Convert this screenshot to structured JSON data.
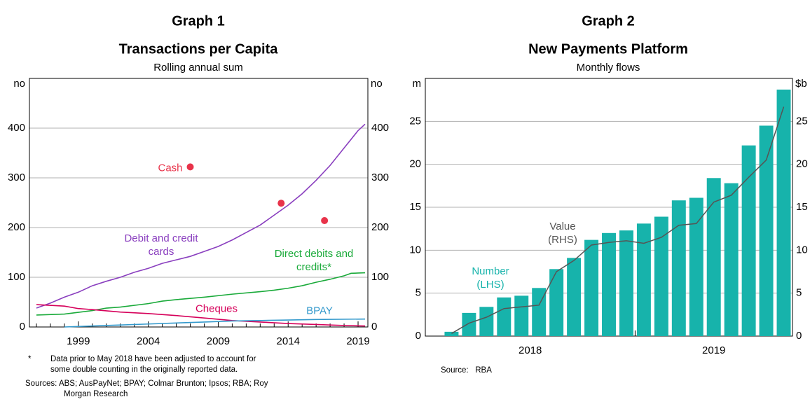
{
  "chart_data": [
    {
      "type": "line",
      "graph_label": "Graph 1",
      "title": "Transactions per Capita",
      "subtitle": "Rolling annual sum",
      "y_unit": "no",
      "y2_unit": "no",
      "xlim": [
        1995.5,
        2019.7
      ],
      "xticks": [
        1999,
        2004,
        2009,
        2014,
        2019
      ],
      "xminorticks": [
        1996,
        1997,
        1998,
        2000,
        2001,
        2002,
        2003,
        2005,
        2006,
        2007,
        2008,
        2010,
        2011,
        2012,
        2013,
        2015,
        2016,
        2017,
        2018
      ],
      "ylim": [
        0,
        500
      ],
      "yticks": [
        0,
        100,
        200,
        300,
        400
      ],
      "y2lim": [
        0,
        500
      ],
      "y2ticks": [
        0,
        100,
        200,
        300,
        400
      ],
      "grid": true,
      "series": [
        {
          "name": "Cash",
          "mark": "dot",
          "color": "#e8334a",
          "x": [
            2007,
            2013.5,
            2016.6
          ],
          "values": [
            322,
            249,
            214
          ]
        },
        {
          "name": "Debit and credit cards",
          "color": "#8a3fbf",
          "x": [
            1996,
            1997,
            1998,
            1999,
            2000,
            2001,
            2002,
            2003,
            2004,
            2005,
            2006,
            2007,
            2008,
            2009,
            2010,
            2011,
            2012,
            2013,
            2014,
            2015,
            2016,
            2017,
            2018,
            2019,
            2019.5
          ],
          "values": [
            38,
            48,
            60,
            70,
            83,
            92,
            100,
            110,
            118,
            128,
            135,
            142,
            152,
            162,
            175,
            190,
            205,
            225,
            245,
            268,
            295,
            325,
            360,
            395,
            408
          ]
        },
        {
          "name": "Direct debits and credits*",
          "color": "#1aaa3a",
          "x": [
            1996,
            1998,
            2000,
            2001,
            2002,
            2004,
            2005,
            2006,
            2008,
            2010,
            2012,
            2013,
            2014,
            2015,
            2016,
            2017,
            2018,
            2018.5,
            2019.5
          ],
          "values": [
            24,
            26,
            33,
            38,
            40,
            47,
            52,
            55,
            60,
            66,
            71,
            74,
            78,
            83,
            90,
            96,
            103,
            108,
            109
          ]
        },
        {
          "name": "Cheques",
          "color": "#d6005a",
          "x": [
            1996,
            1998,
            1999,
            2000,
            2002,
            2004,
            2006,
            2008,
            2010,
            2012,
            2014,
            2016,
            2018,
            2019.5
          ],
          "values": [
            45,
            42,
            37,
            35,
            30,
            27,
            23,
            18,
            13,
            10,
            7,
            5,
            3,
            2
          ]
        },
        {
          "name": "BPAY",
          "color": "#3399cc",
          "x": [
            1998,
            2000,
            2002,
            2004,
            2006,
            2008,
            2010,
            2012,
            2014,
            2016,
            2019.5
          ],
          "values": [
            0,
            2,
            4,
            6,
            8,
            10,
            12,
            13,
            14,
            15,
            16
          ]
        }
      ],
      "footnote_marker": "*",
      "footnote": "Data prior to May 2018 have been adjusted to account for some double counting in the originally reported data.",
      "sources": "Sources: ABS; AusPayNet; BPAY; Colmar Brunton; Ipsos; RBA; Roy Morgan Research"
    },
    {
      "type": "bar_line",
      "graph_label": "Graph 2",
      "title": "New Payments Platform",
      "subtitle": "Monthly flows",
      "y_unit": "m",
      "y2_unit": "$b",
      "categories": [
        null,
        null,
        null,
        null,
        null,
        null,
        null,
        null,
        null,
        null,
        null,
        null,
        null,
        null,
        null,
        null,
        null,
        null,
        null,
        null,
        null
      ],
      "x_groups": [
        {
          "label": "2018",
          "count": 12
        },
        {
          "label": "2019",
          "count": 9
        }
      ],
      "ylim": [
        0,
        30
      ],
      "yticks": [
        0,
        5,
        10,
        15,
        20,
        25
      ],
      "y2lim": [
        0,
        30
      ],
      "y2ticks": [
        0,
        5,
        10,
        15,
        20,
        25
      ],
      "grid": true,
      "series": [
        {
          "name": "Number (LHS)",
          "type": "bar",
          "color": "#17b3ab",
          "values": [
            null,
            0.5,
            2.7,
            3.4,
            4.5,
            4.7,
            5.6,
            7.8,
            9.1,
            11.2,
            12.0,
            12.3,
            13.1,
            13.9,
            15.8,
            16.1,
            18.4,
            17.8,
            22.2,
            24.5,
            28.7
          ]
        },
        {
          "name": "Value (RHS)",
          "type": "line",
          "axis": "y2",
          "color": "#555555",
          "values": [
            null,
            0.3,
            1.5,
            2.2,
            3.2,
            3.4,
            3.6,
            7.5,
            8.8,
            10.6,
            10.9,
            11.1,
            10.8,
            11.5,
            12.9,
            13.1,
            15.6,
            16.4,
            18.5,
            20.5,
            26.7
          ]
        }
      ],
      "source": "Source:   RBA"
    }
  ]
}
